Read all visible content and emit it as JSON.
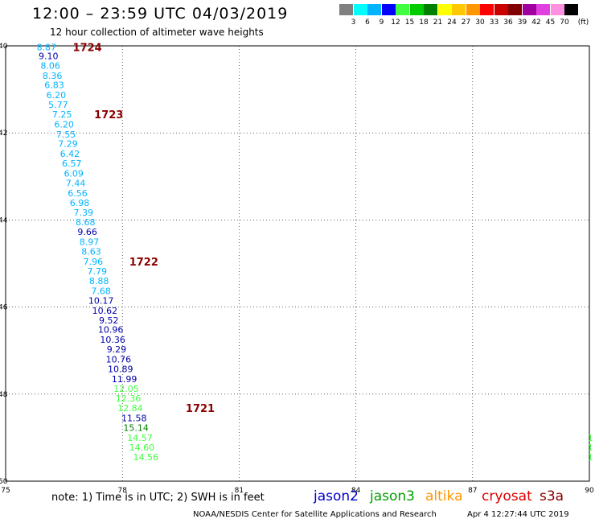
{
  "header": {
    "title": "12:00 – 23:59 UTC 04/03/2019",
    "subtitle": "12 hour collection of altimeter wave heights"
  },
  "legend": {
    "colors": [
      "#808080",
      "#00ffff",
      "#00b4ff",
      "#0000ff",
      "#40ff40",
      "#00cc00",
      "#008000",
      "#ffff00",
      "#ffc800",
      "#ff9600",
      "#ff0000",
      "#c80000",
      "#800000",
      "#a000a0",
      "#e040e0",
      "#ff90e0",
      "#000000"
    ],
    "labels": [
      "3",
      "6",
      "9",
      "12",
      "15",
      "18",
      "21",
      "24",
      "27",
      "30",
      "33",
      "36",
      "39",
      "42",
      "45",
      "70"
    ],
    "unit": "(ft)"
  },
  "map": {
    "lon_range": [
      75,
      90
    ],
    "lat_range": [
      -40,
      -50
    ],
    "lon_ticks": [
      "75",
      "78",
      "81",
      "84",
      "87",
      "90"
    ],
    "lat_ticks": [
      "40",
      "42",
      "44",
      "46",
      "48",
      "50"
    ],
    "grid": "dotted"
  },
  "observations": [
    {
      "v": "8.87",
      "lon": 76.05,
      "lat": -40.03,
      "c": "#00b4ff"
    },
    {
      "v": "9.10",
      "lon": 76.1,
      "lat": -40.23,
      "c": "#0000aa"
    },
    {
      "v": "8.06",
      "lon": 76.15,
      "lat": -40.45,
      "c": "#00b4ff"
    },
    {
      "v": "8.36",
      "lon": 76.2,
      "lat": -40.68,
      "c": "#00b4ff"
    },
    {
      "v": "6.83",
      "lon": 76.25,
      "lat": -40.9,
      "c": "#00b4ff"
    },
    {
      "v": "6.20",
      "lon": 76.3,
      "lat": -41.13,
      "c": "#00b4ff"
    },
    {
      "v": "5.77",
      "lon": 76.35,
      "lat": -41.35,
      "c": "#00b4ff"
    },
    {
      "v": "7.25",
      "lon": 76.45,
      "lat": -41.57,
      "c": "#00b4ff"
    },
    {
      "v": "6.20",
      "lon": 76.5,
      "lat": -41.8,
      "c": "#00b4ff"
    },
    {
      "v": "7.55",
      "lon": 76.55,
      "lat": -42.03,
      "c": "#00b4ff"
    },
    {
      "v": "7.29",
      "lon": 76.6,
      "lat": -42.25,
      "c": "#00b4ff"
    },
    {
      "v": "6.42",
      "lon": 76.65,
      "lat": -42.48,
      "c": "#00b4ff"
    },
    {
      "v": "6.57",
      "lon": 76.7,
      "lat": -42.7,
      "c": "#00b4ff"
    },
    {
      "v": "6.09",
      "lon": 76.75,
      "lat": -42.93,
      "c": "#00b4ff"
    },
    {
      "v": "7.44",
      "lon": 76.8,
      "lat": -43.15,
      "c": "#00b4ff"
    },
    {
      "v": "6.56",
      "lon": 76.85,
      "lat": -43.38,
      "c": "#00b4ff"
    },
    {
      "v": "6.98",
      "lon": 76.9,
      "lat": -43.6,
      "c": "#00b4ff"
    },
    {
      "v": "7.39",
      "lon": 77.0,
      "lat": -43.83,
      "c": "#00b4ff"
    },
    {
      "v": "8.68",
      "lon": 77.05,
      "lat": -44.05,
      "c": "#00b4ff"
    },
    {
      "v": "9.66",
      "lon": 77.1,
      "lat": -44.27,
      "c": "#0000aa"
    },
    {
      "v": "8.97",
      "lon": 77.15,
      "lat": -44.5,
      "c": "#00b4ff"
    },
    {
      "v": "8.63",
      "lon": 77.2,
      "lat": -44.72,
      "c": "#00b4ff"
    },
    {
      "v": "7.96",
      "lon": 77.25,
      "lat": -44.95,
      "c": "#00b4ff"
    },
    {
      "v": "7.79",
      "lon": 77.35,
      "lat": -45.18,
      "c": "#00b4ff"
    },
    {
      "v": "8.88",
      "lon": 77.4,
      "lat": -45.4,
      "c": "#00b4ff"
    },
    {
      "v": "7.68",
      "lon": 77.45,
      "lat": -45.63,
      "c": "#00b4ff"
    },
    {
      "v": "10.17",
      "lon": 77.45,
      "lat": -45.85,
      "c": "#0000aa"
    },
    {
      "v": "10.62",
      "lon": 77.55,
      "lat": -46.08,
      "c": "#0000aa"
    },
    {
      "v": "9.52",
      "lon": 77.65,
      "lat": -46.3,
      "c": "#0000aa"
    },
    {
      "v": "10.96",
      "lon": 77.7,
      "lat": -46.52,
      "c": "#0000aa"
    },
    {
      "v": "10.36",
      "lon": 77.75,
      "lat": -46.75,
      "c": "#0000aa"
    },
    {
      "v": "9.29",
      "lon": 77.85,
      "lat": -46.97,
      "c": "#0000aa"
    },
    {
      "v": "10.76",
      "lon": 77.9,
      "lat": -47.2,
      "c": "#0000aa"
    },
    {
      "v": "10.89",
      "lon": 77.95,
      "lat": -47.42,
      "c": "#0000aa"
    },
    {
      "v": "11.99",
      "lon": 78.05,
      "lat": -47.65,
      "c": "#0000aa"
    },
    {
      "v": "12.05",
      "lon": 78.1,
      "lat": -47.87,
      "c": "#40ff40"
    },
    {
      "v": "12.36",
      "lon": 78.15,
      "lat": -48.1,
      "c": "#40ff40"
    },
    {
      "v": "12.84",
      "lon": 78.2,
      "lat": -48.32,
      "c": "#40ff40"
    },
    {
      "v": "11.58",
      "lon": 78.3,
      "lat": -48.55,
      "c": "#0000aa"
    },
    {
      "v": "15.14",
      "lon": 78.35,
      "lat": -48.77,
      "c": "#008000"
    },
    {
      "v": "14.57",
      "lon": 78.45,
      "lat": -49.0,
      "c": "#40ff40"
    },
    {
      "v": "14.60",
      "lon": 78.5,
      "lat": -49.22,
      "c": "#40ff40"
    },
    {
      "v": "14.56",
      "lon": 78.6,
      "lat": -49.45,
      "c": "#40ff40"
    }
  ],
  "edge_fragments": [
    {
      "v": "1",
      "lon": 89.95,
      "lat": -49.0,
      "c": "#40ff40"
    },
    {
      "v": "1",
      "lon": 89.95,
      "lat": -49.22,
      "c": "#40ff40"
    },
    {
      "v": "1",
      "lon": 89.95,
      "lat": -49.45,
      "c": "#40ff40"
    }
  ],
  "time_labels": [
    {
      "t": "1724",
      "lon": 77.1,
      "lat": -40.03
    },
    {
      "t": "1723",
      "lon": 77.65,
      "lat": -41.57
    },
    {
      "t": "1722",
      "lon": 78.55,
      "lat": -44.95
    },
    {
      "t": "1721",
      "lon": 80.0,
      "lat": -48.32
    }
  ],
  "footer": {
    "note": "note: 1) Time is in UTC; 2) SWH is in feet",
    "satellites": [
      {
        "name": "jason2",
        "color": "#0000cc"
      },
      {
        "name": "jason3",
        "color": "#00a000"
      },
      {
        "name": "altika",
        "color": "#ff9600"
      },
      {
        "name": "cryosat",
        "color": "#dd0000"
      },
      {
        "name": "s3a",
        "color": "#880000"
      }
    ],
    "credit": "NOAA/NESDIS Center for Satellite Applications and Research",
    "timestamp": "Apr  4 12:27:44 UTC 2019"
  }
}
